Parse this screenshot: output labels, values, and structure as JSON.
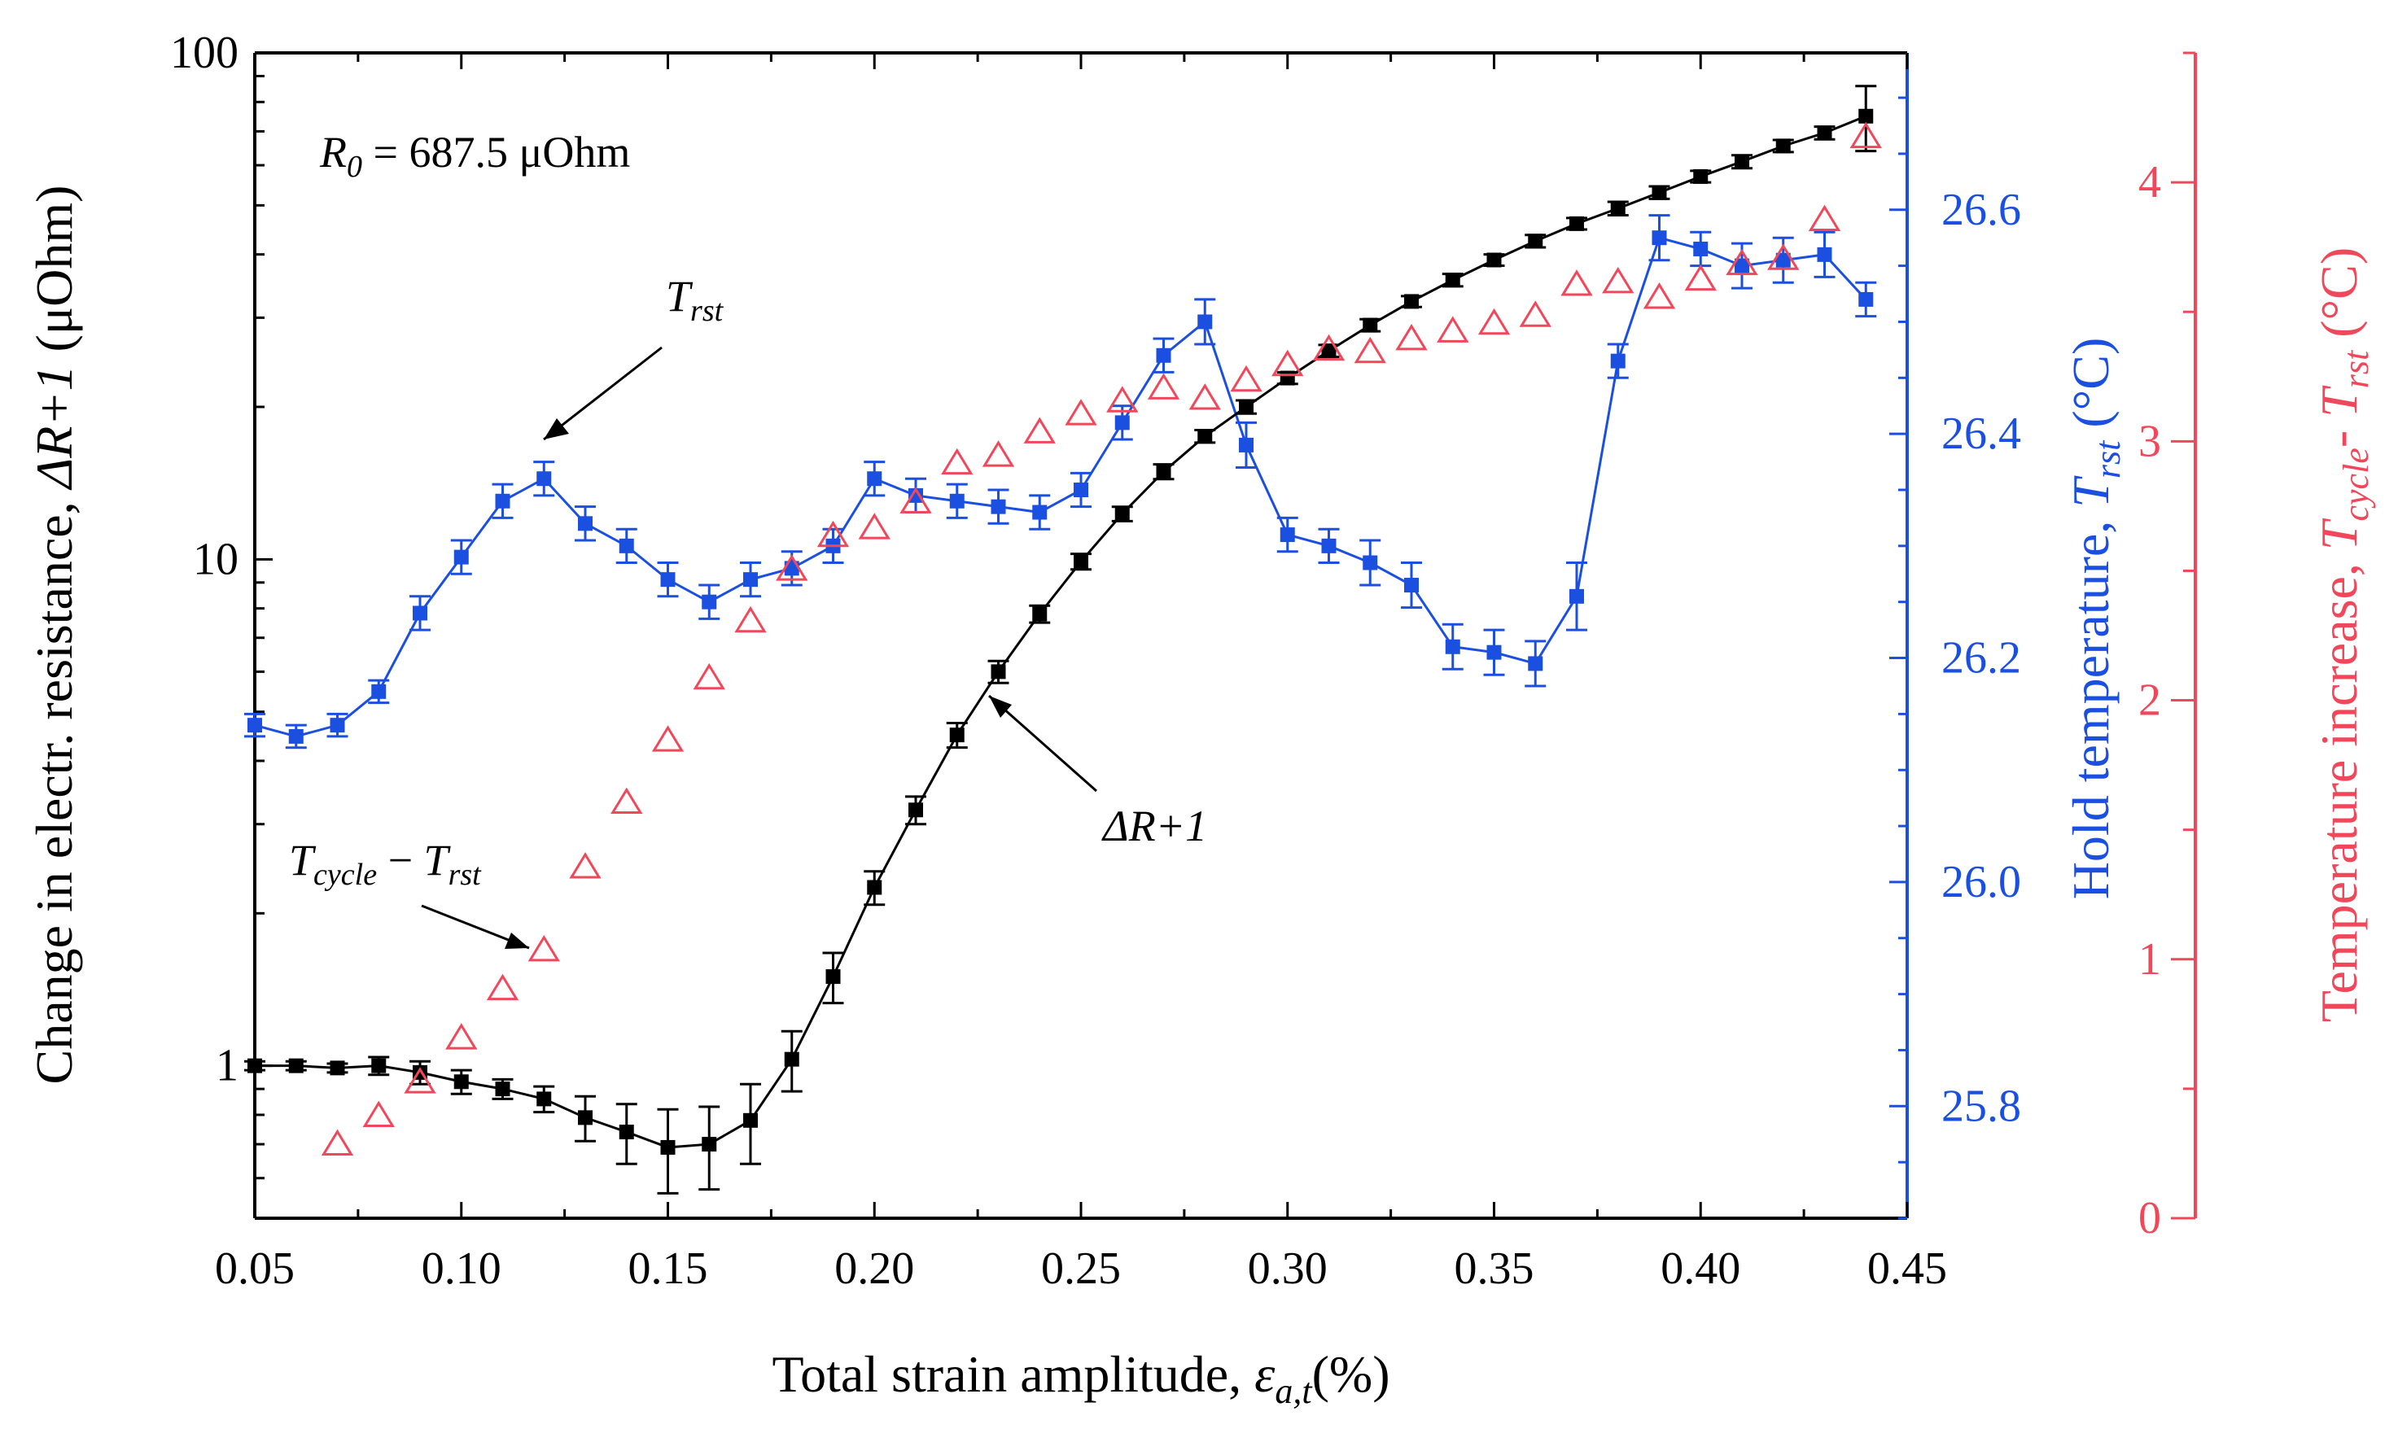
{
  "chart_data": {
    "type": "line",
    "xlabel_main": "Total strain amplitude, ",
    "xlabel_symbol": "ε",
    "xlabel_symbol_sub": "a,t",
    "xlabel_unit": "(%)",
    "xlim": [
      0.05,
      0.45
    ],
    "xticks": [
      "0.05",
      "0.10",
      "0.15",
      "0.20",
      "0.25",
      "0.30",
      "0.35",
      "0.40",
      "0.45"
    ],
    "left_axis": {
      "label_prefix": "Change in electr. resistance, ",
      "label_symbol": "ΔR+1",
      "label_unit": " (μOhm)",
      "scale": "log",
      "ylim": [
        0.5,
        100
      ],
      "ticks": [
        "1",
        "10",
        "100"
      ],
      "color": "#000000"
    },
    "right_axis_1": {
      "label_prefix": "Hold temperature, ",
      "label_symbol": "T",
      "label_sub": "rst",
      "label_unit": " (°C)",
      "ylim": [
        25.7,
        26.74
      ],
      "ticks": [
        "25.8",
        "26.0",
        "26.2",
        "26.4",
        "26.6"
      ],
      "color": "#1a4fe0"
    },
    "right_axis_2": {
      "label_prefix": "Temperature increase, ",
      "label_symbol1": "T",
      "label_sub1": "cycle",
      "label_minus": "- ",
      "label_symbol2": "T",
      "label_sub2": "rst",
      "label_unit": " (°C)",
      "ylim": [
        0,
        4.5
      ],
      "ticks": [
        "0",
        "1",
        "2",
        "3",
        "4"
      ],
      "color": "#f0485a"
    },
    "annotations": {
      "r0_symbol": "R",
      "r0_sub": "0",
      "r0_value": " = 687.5 μOhm",
      "trst_symbol": "T",
      "trst_sub": "rst",
      "dr_label": "ΔR+1",
      "tdiff_symbol1": "T",
      "tdiff_sub1": "cycle",
      "tdiff_minus": " − ",
      "tdiff_symbol2": "T",
      "tdiff_sub2": "rst"
    },
    "series": [
      {
        "name": "ΔR+1",
        "axis": "left",
        "color": "#000000",
        "marker": "square",
        "x": [
          0.05,
          0.06,
          0.07,
          0.08,
          0.09,
          0.1,
          0.11,
          0.12,
          0.13,
          0.14,
          0.15,
          0.16,
          0.17,
          0.18,
          0.19,
          0.2,
          0.21,
          0.22,
          0.23,
          0.24,
          0.25,
          0.26,
          0.27,
          0.28,
          0.29,
          0.3,
          0.31,
          0.32,
          0.33,
          0.34,
          0.35,
          0.36,
          0.37,
          0.38,
          0.39,
          0.4,
          0.41,
          0.42,
          0.43,
          0.44
        ],
        "y": [
          1.0,
          1.0,
          0.99,
          1.0,
          0.97,
          0.93,
          0.9,
          0.86,
          0.79,
          0.74,
          0.69,
          0.7,
          0.78,
          1.03,
          1.5,
          2.25,
          3.2,
          4.5,
          6.0,
          7.8,
          9.9,
          12.3,
          14.9,
          17.5,
          20.0,
          22.8,
          25.8,
          29.0,
          32.3,
          35.6,
          39.0,
          42.5,
          46.0,
          49.3,
          53.0,
          57.0,
          61.0,
          65.5,
          69.5,
          75.0
        ],
        "yerr": [
          0.02,
          0.02,
          0.02,
          0.04,
          0.05,
          0.05,
          0.04,
          0.05,
          0.08,
          0.1,
          0.13,
          0.13,
          0.14,
          0.14,
          0.17,
          0.17,
          0.2,
          0.25,
          0.3,
          0.3,
          0.35,
          0.4,
          0.5,
          0.5,
          0.6,
          0.6,
          0.7,
          0.8,
          0.8,
          1.0,
          1.0,
          1.2,
          1.2,
          1.5,
          1.5,
          1.5,
          1.8,
          1.8,
          2.0,
          11.0
        ]
      },
      {
        "name": "T_rst",
        "axis": "right_1",
        "color": "#1a4fe0",
        "marker": "square",
        "x": [
          0.05,
          0.06,
          0.07,
          0.08,
          0.09,
          0.1,
          0.11,
          0.12,
          0.13,
          0.14,
          0.15,
          0.16,
          0.17,
          0.18,
          0.19,
          0.2,
          0.21,
          0.22,
          0.23,
          0.24,
          0.25,
          0.26,
          0.27,
          0.28,
          0.29,
          0.3,
          0.31,
          0.32,
          0.33,
          0.34,
          0.35,
          0.36,
          0.37,
          0.38,
          0.39,
          0.4,
          0.41,
          0.42,
          0.43,
          0.44
        ],
        "y": [
          26.14,
          26.13,
          26.14,
          26.17,
          26.24,
          26.29,
          26.34,
          26.36,
          26.32,
          26.3,
          26.27,
          26.25,
          26.27,
          26.28,
          26.3,
          26.36,
          26.345,
          26.34,
          26.335,
          26.33,
          26.35,
          26.41,
          26.47,
          26.5,
          26.39,
          26.31,
          26.3,
          26.285,
          26.265,
          26.21,
          26.205,
          26.195,
          26.255,
          26.465,
          26.575,
          26.565,
          26.55,
          26.555,
          26.56,
          26.52
        ],
        "yerr": [
          0.01,
          0.01,
          0.01,
          0.01,
          0.015,
          0.015,
          0.015,
          0.015,
          0.015,
          0.015,
          0.015,
          0.015,
          0.015,
          0.015,
          0.015,
          0.015,
          0.015,
          0.015,
          0.015,
          0.015,
          0.015,
          0.015,
          0.015,
          0.02,
          0.02,
          0.015,
          0.015,
          0.02,
          0.02,
          0.02,
          0.02,
          0.02,
          0.03,
          0.015,
          0.02,
          0.015,
          0.02,
          0.02,
          0.02,
          0.015
        ]
      },
      {
        "name": "T_cycle - T_rst",
        "axis": "right_2",
        "color": "#f0485a",
        "marker": "triangle-open",
        "x": [
          0.07,
          0.08,
          0.09,
          0.1,
          0.11,
          0.12,
          0.13,
          0.14,
          0.15,
          0.16,
          0.17,
          0.18,
          0.19,
          0.2,
          0.21,
          0.22,
          0.23,
          0.24,
          0.25,
          0.26,
          0.27,
          0.28,
          0.29,
          0.3,
          0.31,
          0.32,
          0.33,
          0.34,
          0.35,
          0.36,
          0.37,
          0.38,
          0.39,
          0.4,
          0.41,
          0.42,
          0.43,
          0.44
        ],
        "y": [
          0.28,
          0.39,
          0.52,
          0.69,
          0.88,
          1.03,
          1.35,
          1.6,
          1.84,
          2.08,
          2.3,
          2.5,
          2.63,
          2.66,
          2.76,
          2.91,
          2.94,
          3.03,
          3.1,
          3.15,
          3.2,
          3.16,
          3.23,
          3.29,
          3.35,
          3.34,
          3.39,
          3.42,
          3.45,
          3.48,
          3.6,
          3.61,
          3.55,
          3.62,
          3.68,
          3.7,
          3.85,
          4.17
        ]
      }
    ]
  }
}
